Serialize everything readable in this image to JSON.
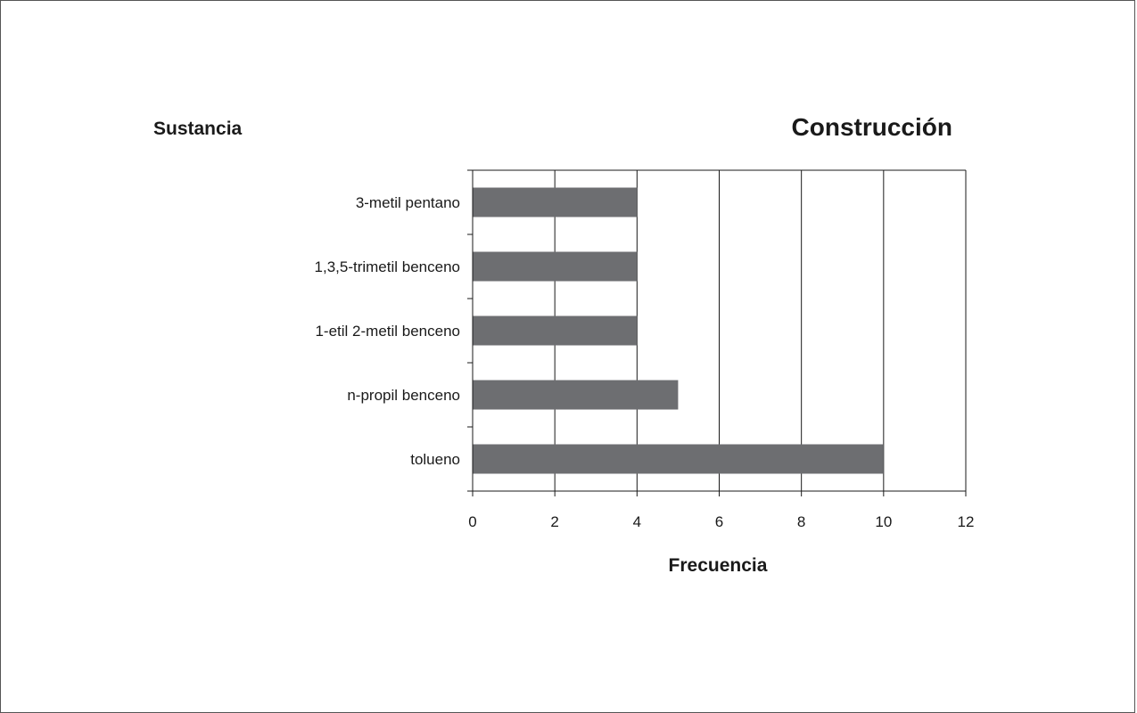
{
  "chart_data": {
    "type": "bar",
    "orientation": "horizontal",
    "title": "Construcción",
    "ylabel": "Sustancia",
    "xlabel": "Frecuencia",
    "categories": [
      "3-metil pentano",
      "1,3,5-trimetil benceno",
      "1-etil 2-metil benceno",
      "n-propil benceno",
      "tolueno"
    ],
    "values": [
      4,
      4,
      4,
      5,
      10
    ],
    "xlim": [
      0,
      12
    ],
    "xticks": [
      0,
      2,
      4,
      6,
      8,
      10,
      12
    ],
    "grid": "vertical",
    "bar_color": "#6d6e71",
    "legend": "none"
  }
}
